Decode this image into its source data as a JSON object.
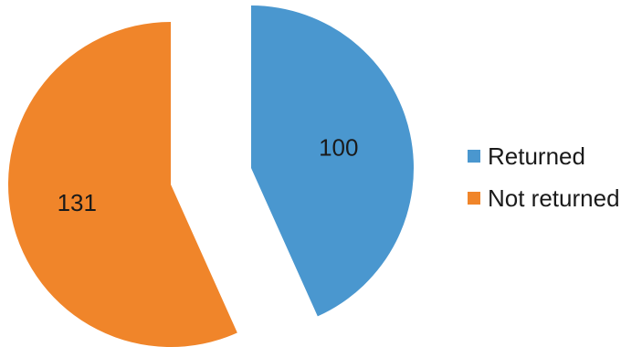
{
  "chart_data": {
    "type": "pie",
    "title": "",
    "slices": [
      {
        "label": "Returned",
        "value": 100,
        "color": "#4a97cf"
      },
      {
        "label": "Not returned",
        "value": 131,
        "color": "#f0852a"
      }
    ],
    "exploded": true,
    "data_labels": "value",
    "legend": "right"
  }
}
